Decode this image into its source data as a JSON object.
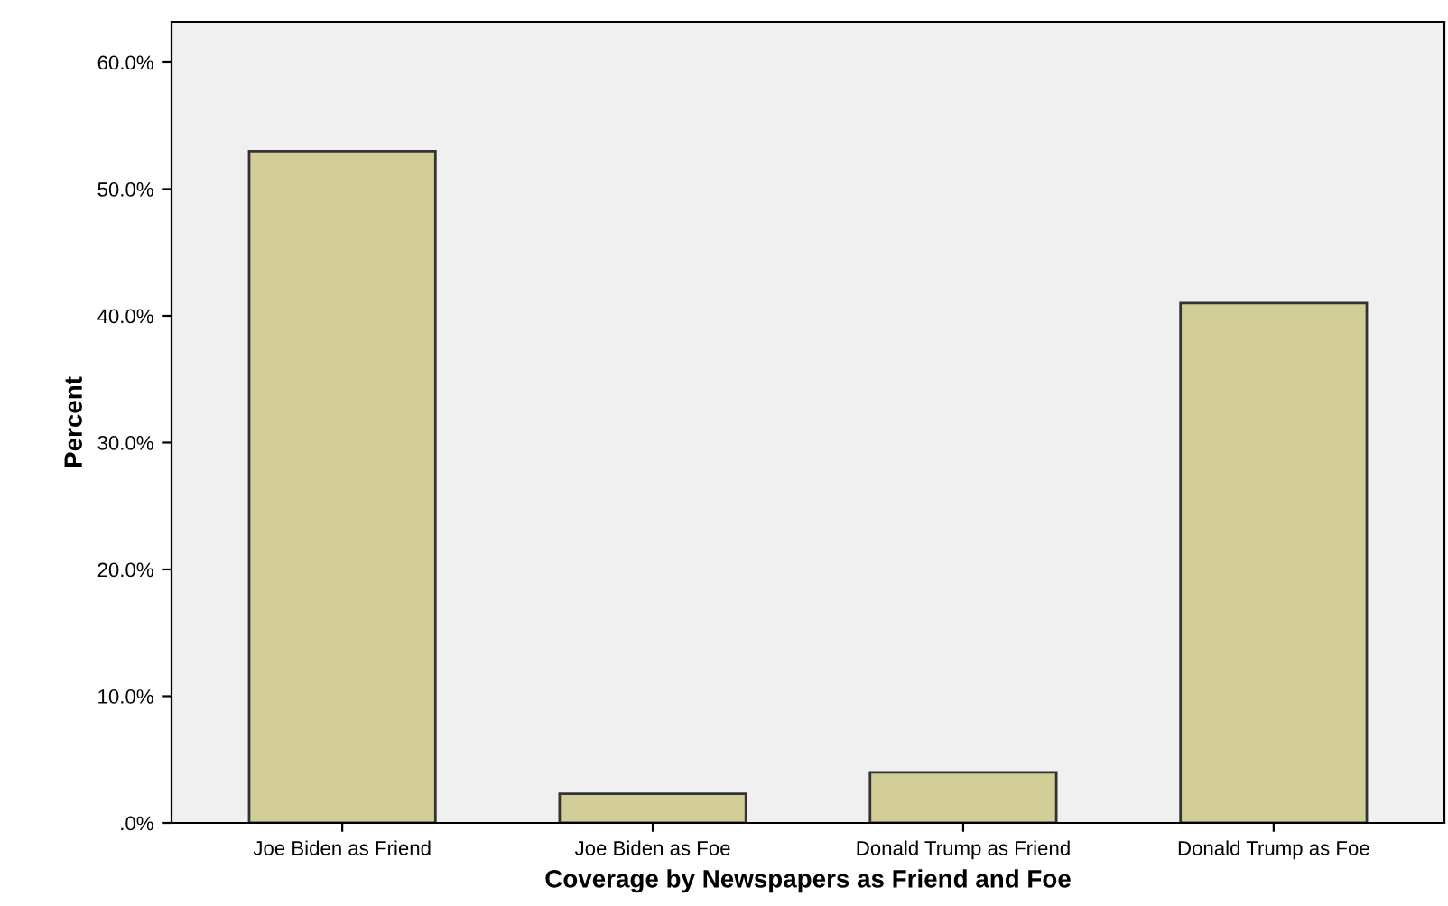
{
  "chart_data": {
    "type": "bar",
    "xlabel": "Coverage by Newspapers as Friend and Foe",
    "ylabel": "Percent",
    "categories": [
      "Joe Biden as Friend",
      "Joe Biden as Foe",
      "Donald Trump as Friend",
      "Donald Trump as Foe"
    ],
    "values": [
      53.0,
      2.3,
      4.0,
      41.0
    ],
    "color": "#d3ce97",
    "ylim": [
      0,
      63.2
    ],
    "yticks": [
      {
        "value": 0,
        "label": ".0%"
      },
      {
        "value": 10,
        "label": "10.0%"
      },
      {
        "value": 20,
        "label": "20.0%"
      },
      {
        "value": 30,
        "label": "30.0%"
      },
      {
        "value": 40,
        "label": "40.0%"
      },
      {
        "value": 50,
        "label": "50.0%"
      },
      {
        "value": 60,
        "label": "60.0%"
      }
    ],
    "grid": false,
    "legend": false
  }
}
